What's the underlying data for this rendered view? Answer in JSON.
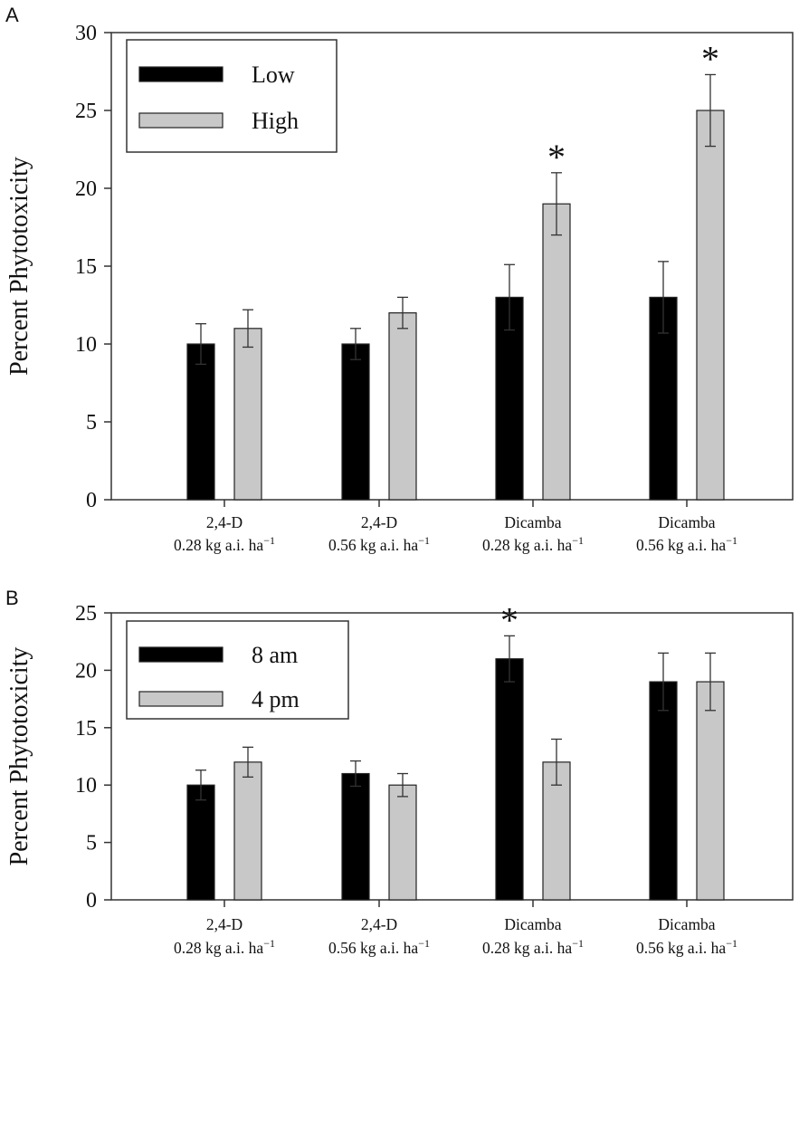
{
  "chart_data": [
    {
      "type": "bar",
      "panel_label": "A",
      "ylabel": "Percent Phytotoxicity",
      "ylim": [
        0,
        30
      ],
      "yticks": [
        0,
        5,
        10,
        15,
        20,
        25,
        30
      ],
      "categories": [
        {
          "herbicide": "2,4-D",
          "rate": "0.28 kg a.i. ha",
          "sup": "−1"
        },
        {
          "herbicide": "2,4-D",
          "rate": "0.56 kg a.i. ha",
          "sup": "−1"
        },
        {
          "herbicide": "Dicamba",
          "rate": "0.28 kg a.i. ha",
          "sup": "−1"
        },
        {
          "herbicide": "Dicamba",
          "rate": "0.56 kg a.i. ha",
          "sup": "−1"
        }
      ],
      "series": [
        {
          "name": "Low",
          "color": "#000000",
          "values": [
            10,
            10,
            13,
            13
          ],
          "error": [
            1.3,
            1.0,
            2.1,
            2.3
          ]
        },
        {
          "name": "High",
          "color": "#c8c8c8",
          "values": [
            11,
            12,
            19,
            25
          ],
          "error": [
            1.2,
            1.0,
            2.0,
            2.3
          ]
        }
      ],
      "significance": [
        {
          "label": "*",
          "category_index": 2,
          "series_index": 1
        },
        {
          "label": "*",
          "category_index": 3,
          "series_index": 1
        }
      ],
      "legend_position": "top-left",
      "grid": false
    },
    {
      "type": "bar",
      "panel_label": "B",
      "ylabel": "Percent Phytotoxicity",
      "ylim": [
        0,
        25
      ],
      "yticks": [
        0,
        5,
        10,
        15,
        20,
        25
      ],
      "categories": [
        {
          "herbicide": "2,4-D",
          "rate": "0.28 kg a.i. ha",
          "sup": "−1"
        },
        {
          "herbicide": "2,4-D",
          "rate": "0.56 kg a.i. ha",
          "sup": "−1"
        },
        {
          "herbicide": "Dicamba",
          "rate": "0.28 kg a.i. ha",
          "sup": "−1"
        },
        {
          "herbicide": "Dicamba",
          "rate": "0.56 kg a.i. ha",
          "sup": "−1"
        }
      ],
      "series": [
        {
          "name": "8 am",
          "color": "#000000",
          "values": [
            10,
            11,
            21,
            19
          ],
          "error": [
            1.3,
            1.1,
            2.0,
            2.5
          ]
        },
        {
          "name": "4 pm",
          "color": "#c8c8c8",
          "values": [
            12,
            10,
            12,
            19
          ],
          "error": [
            1.3,
            1.0,
            2.0,
            2.5
          ]
        }
      ],
      "significance": [
        {
          "label": "*",
          "category_index": 2,
          "series_index": 0
        }
      ],
      "legend_position": "top-left",
      "grid": false
    }
  ]
}
